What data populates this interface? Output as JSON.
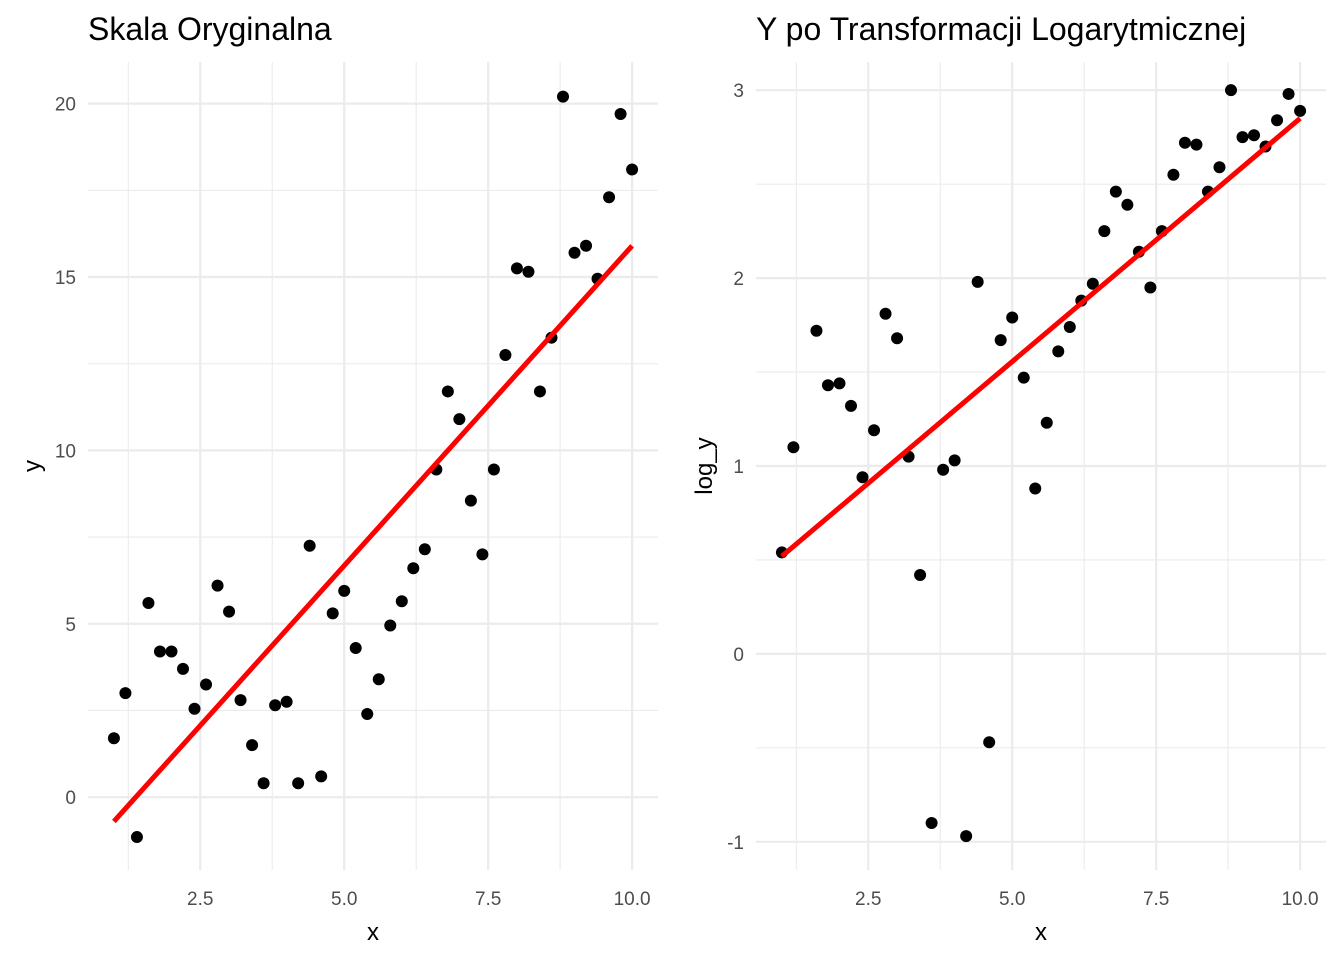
{
  "chart_data": [
    {
      "type": "scatter",
      "title": "Skala Oryginalna",
      "xlabel": "x",
      "ylabel": "y",
      "xlim": [
        0.55,
        10.45
      ],
      "ylim": [
        -2.1,
        21.2
      ],
      "xticks": [
        2.5,
        5.0,
        7.5,
        10.0
      ],
      "xtick_labels": [
        "2.5",
        "5.0",
        "7.5",
        "10.0"
      ],
      "yticks": [
        0,
        5,
        10,
        15,
        20
      ],
      "ytick_labels": [
        "0",
        "5",
        "10",
        "15",
        "20"
      ],
      "grid": true,
      "point_color": "#000000",
      "line_color": "#ff0000",
      "points": {
        "x": [
          1.0,
          1.2,
          1.4,
          1.6,
          1.8,
          2.0,
          2.2,
          2.4,
          2.6,
          2.8,
          3.0,
          3.2,
          3.4,
          3.6,
          3.8,
          4.0,
          4.2,
          4.4,
          4.6,
          4.8,
          5.0,
          5.2,
          5.4,
          5.6,
          5.8,
          6.0,
          6.2,
          6.4,
          6.6,
          6.8,
          7.0,
          7.2,
          7.4,
          7.6,
          7.8,
          8.0,
          8.2,
          8.4,
          8.6,
          8.8,
          9.0,
          9.2,
          9.4,
          9.6,
          9.8,
          10.0
        ],
        "y": [
          1.7,
          3.0,
          -1.15,
          5.6,
          4.2,
          4.2,
          3.7,
          2.55,
          3.25,
          6.1,
          5.35,
          2.8,
          1.5,
          0.4,
          2.65,
          2.75,
          0.4,
          7.25,
          0.6,
          5.3,
          5.95,
          4.3,
          2.4,
          3.4,
          4.95,
          5.65,
          6.6,
          7.15,
          9.45,
          11.7,
          10.9,
          8.55,
          7.0,
          9.45,
          12.75,
          15.25,
          15.15,
          11.7,
          13.25,
          20.2,
          15.7,
          15.9,
          14.95,
          17.3,
          19.7,
          18.1
        ]
      },
      "fit_line": {
        "x": [
          1.0,
          10.0
        ],
        "y": [
          -0.7,
          15.9
        ]
      }
    },
    {
      "type": "scatter",
      "title": "Y po Transformacji Logarytmicznej",
      "xlabel": "x",
      "ylabel": "log_y",
      "xlim": [
        0.55,
        10.45
      ],
      "ylim": [
        -1.15,
        3.15
      ],
      "xticks": [
        2.5,
        5.0,
        7.5,
        10.0
      ],
      "xtick_labels": [
        "2.5",
        "5.0",
        "7.5",
        "10.0"
      ],
      "yticks": [
        -1,
        0,
        1,
        2,
        3
      ],
      "ytick_labels": [
        "-1",
        "0",
        "1",
        "2",
        "3"
      ],
      "grid": true,
      "point_color": "#000000",
      "line_color": "#ff0000",
      "points": {
        "x": [
          1.0,
          1.2,
          1.6,
          1.8,
          2.0,
          2.2,
          2.4,
          2.6,
          2.8,
          3.0,
          3.2,
          3.4,
          3.6,
          3.8,
          4.0,
          4.2,
          4.4,
          4.6,
          4.8,
          5.0,
          5.2,
          5.4,
          5.6,
          5.8,
          6.0,
          6.2,
          6.4,
          6.6,
          6.8,
          7.0,
          7.2,
          7.4,
          7.6,
          7.8,
          8.0,
          8.2,
          8.4,
          8.6,
          8.8,
          9.0,
          9.2,
          9.4,
          9.6,
          9.8,
          10.0
        ],
        "y": [
          0.54,
          1.1,
          1.72,
          1.43,
          1.44,
          1.32,
          0.94,
          1.19,
          1.81,
          1.68,
          1.05,
          0.42,
          -0.9,
          0.98,
          1.03,
          -0.97,
          1.98,
          -0.47,
          1.67,
          1.79,
          1.47,
          0.88,
          1.23,
          1.61,
          1.74,
          1.88,
          1.97,
          2.25,
          2.46,
          2.39,
          2.14,
          1.95,
          2.25,
          2.55,
          2.72,
          2.71,
          2.46,
          2.59,
          3.0,
          2.75,
          2.76,
          2.7,
          2.84,
          2.98,
          2.89
        ]
      },
      "fit_line": {
        "x": [
          1.0,
          10.0
        ],
        "y": [
          0.52,
          2.85
        ]
      }
    }
  ]
}
